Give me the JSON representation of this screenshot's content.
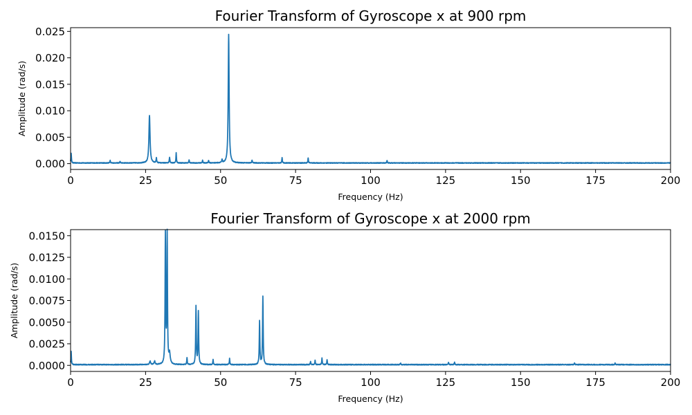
{
  "chart_data": [
    {
      "type": "line",
      "title": "Fourier Transform of Gyroscope x at 900 rpm",
      "xlabel": "Frequency (Hz)",
      "ylabel": "Amplitude  (rad/s)",
      "xlim": [
        0,
        200
      ],
      "ylim": [
        -0.0011,
        0.0257
      ],
      "xticks": [
        0,
        25,
        50,
        75,
        100,
        125,
        150,
        175,
        200
      ],
      "xtick_labels": [
        "0",
        "25",
        "50",
        "75",
        "100",
        "125",
        "150",
        "175",
        "200"
      ],
      "yticks": [
        0,
        0.005,
        0.01,
        0.015,
        0.02,
        0.025
      ],
      "ytick_labels": [
        "0.000",
        "0.005",
        "0.010",
        "0.015",
        "0.020",
        "0.025"
      ],
      "grid": false,
      "baseline": 0.00015,
      "series": [
        {
          "color": "#1f77b4",
          "peaks": [
            {
              "x": 0.2,
              "y": 0.0019,
              "w": 0.1
            },
            {
              "x": 13.2,
              "y": 0.0005,
              "w": 0.1
            },
            {
              "x": 16.5,
              "y": 0.0003,
              "w": 0.1
            },
            {
              "x": 26.3,
              "y": 0.009,
              "w": 0.22
            },
            {
              "x": 28.6,
              "y": 0.0009,
              "w": 0.12
            },
            {
              "x": 33.0,
              "y": 0.0011,
              "w": 0.12
            },
            {
              "x": 35.2,
              "y": 0.0019,
              "w": 0.1
            },
            {
              "x": 39.5,
              "y": 0.0006,
              "w": 0.1
            },
            {
              "x": 44.0,
              "y": 0.0005,
              "w": 0.1
            },
            {
              "x": 46.0,
              "y": 0.0005,
              "w": 0.1
            },
            {
              "x": 50.5,
              "y": 0.0006,
              "w": 0.12
            },
            {
              "x": 52.7,
              "y": 0.0243,
              "w": 0.18
            },
            {
              "x": 60.5,
              "y": 0.0005,
              "w": 0.12
            },
            {
              "x": 70.5,
              "y": 0.001,
              "w": 0.1
            },
            {
              "x": 79.2,
              "y": 0.001,
              "w": 0.1
            },
            {
              "x": 105.5,
              "y": 0.0005,
              "w": 0.1
            }
          ]
        }
      ]
    },
    {
      "type": "line",
      "title": "Fourier Transform of Gyroscope x at 2000 rpm",
      "xlabel": "Frequency (Hz)",
      "ylabel": "Amplitude  (rad/s)",
      "xlim": [
        0,
        200
      ],
      "ylim": [
        -0.0007,
        0.0157
      ],
      "xticks": [
        0,
        25,
        50,
        75,
        100,
        125,
        150,
        175,
        200
      ],
      "xtick_labels": [
        "0",
        "25",
        "50",
        "75",
        "100",
        "125",
        "150",
        "175",
        "200"
      ],
      "yticks": [
        0,
        0.0025,
        0.005,
        0.0075,
        0.01,
        0.0125,
        0.015
      ],
      "ytick_labels": [
        "0.0000",
        "0.0025",
        "0.0050",
        "0.0075",
        "0.0100",
        "0.0125",
        "0.0150"
      ],
      "grid": false,
      "baseline": 0.0001,
      "series": [
        {
          "color": "#1f77b4",
          "peaks": [
            {
              "x": 0.2,
              "y": 0.0015,
              "w": 0.1
            },
            {
              "x": 26.5,
              "y": 0.0004,
              "w": 0.2
            },
            {
              "x": 28.0,
              "y": 0.0004,
              "w": 0.2
            },
            {
              "x": 31.6,
              "y": 0.0149,
              "w": 0.12
            },
            {
              "x": 32.2,
              "y": 0.015,
              "w": 0.12
            },
            {
              "x": 33.0,
              "y": 0.0012,
              "w": 0.25
            },
            {
              "x": 38.8,
              "y": 0.0008,
              "w": 0.1
            },
            {
              "x": 41.8,
              "y": 0.0067,
              "w": 0.12
            },
            {
              "x": 42.6,
              "y": 0.0061,
              "w": 0.12
            },
            {
              "x": 47.5,
              "y": 0.0006,
              "w": 0.1
            },
            {
              "x": 53.0,
              "y": 0.0007,
              "w": 0.1
            },
            {
              "x": 63.0,
              "y": 0.005,
              "w": 0.12
            },
            {
              "x": 64.1,
              "y": 0.0079,
              "w": 0.12
            },
            {
              "x": 80.0,
              "y": 0.0004,
              "w": 0.1
            },
            {
              "x": 81.5,
              "y": 0.0005,
              "w": 0.1
            },
            {
              "x": 83.8,
              "y": 0.0008,
              "w": 0.1
            },
            {
              "x": 85.5,
              "y": 0.0006,
              "w": 0.1
            },
            {
              "x": 110.0,
              "y": 0.0002,
              "w": 0.1
            },
            {
              "x": 126.0,
              "y": 0.0003,
              "w": 0.1
            },
            {
              "x": 128.0,
              "y": 0.0003,
              "w": 0.1
            },
            {
              "x": 168.0,
              "y": 0.0002,
              "w": 0.1
            },
            {
              "x": 181.5,
              "y": 0.0002,
              "w": 0.1
            }
          ]
        }
      ]
    }
  ]
}
